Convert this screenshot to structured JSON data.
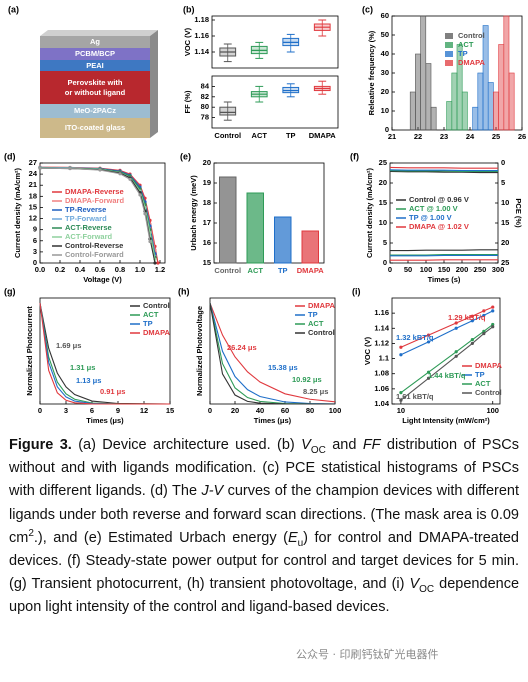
{
  "device_stack": {
    "label": "(a)",
    "layers": [
      "Ag",
      "PCBM/BCP",
      "PEAI",
      [
        "Perovskite with",
        "or without ligand"
      ],
      "MeO-2PACz",
      "ITO-coated glass"
    ]
  },
  "chart_data": [
    {
      "type": "box",
      "label": "(b)",
      "categories": [
        "Control",
        "ACT",
        "TP",
        "DMAPA"
      ],
      "colors": [
        "#555555",
        "#2e9b57",
        "#1f6fc9",
        "#e0393e"
      ],
      "subplots": [
        {
          "ylabel": "VOC (V)",
          "ylim": [
            1.12,
            1.185
          ],
          "yticks": [
            1.14,
            1.16,
            1.18
          ],
          "boxes": [
            {
              "min": 1.128,
              "q1": 1.135,
              "median": 1.14,
              "q3": 1.145,
              "max": 1.15
            },
            {
              "min": 1.132,
              "q1": 1.138,
              "median": 1.142,
              "q3": 1.147,
              "max": 1.152
            },
            {
              "min": 1.14,
              "q1": 1.148,
              "median": 1.152,
              "q3": 1.157,
              "max": 1.162
            },
            {
              "min": 1.16,
              "q1": 1.167,
              "median": 1.171,
              "q3": 1.175,
              "max": 1.18
            }
          ]
        },
        {
          "ylabel": "FF (%)",
          "ylim": [
            76,
            86
          ],
          "yticks": [
            78,
            80,
            82,
            84
          ],
          "boxes": [
            {
              "min": 77.5,
              "q1": 78.5,
              "median": 79,
              "q3": 80,
              "max": 81
            },
            {
              "min": 81,
              "q1": 82,
              "median": 82.5,
              "q3": 83,
              "max": 84
            },
            {
              "min": 82,
              "q1": 82.8,
              "median": 83.2,
              "q3": 83.8,
              "max": 84.5
            },
            {
              "min": 82.5,
              "q1": 83.2,
              "median": 83.6,
              "q3": 84,
              "max": 85
            }
          ]
        }
      ]
    },
    {
      "type": "histogram",
      "label": "(c)",
      "ylabel": "Releative frequency (%)",
      "xlim": [
        21,
        26
      ],
      "xticks": [
        21,
        22,
        23,
        24,
        25,
        26
      ],
      "ylim": [
        0,
        60
      ],
      "yticks": [
        0,
        10,
        20,
        30,
        40,
        50,
        60
      ],
      "series": [
        {
          "name": "Control",
          "color": "#555555",
          "bins": [
            21.7,
            21.9,
            22.1,
            22.3,
            22.5,
            22.7
          ],
          "values": [
            20,
            40,
            60,
            35,
            12
          ]
        },
        {
          "name": "ACT",
          "color": "#2e9b57",
          "bins": [
            23.1,
            23.3,
            23.5,
            23.7,
            23.9
          ],
          "values": [
            15,
            30,
            45,
            20
          ]
        },
        {
          "name": "TP",
          "color": "#1f6fc9",
          "bins": [
            24.1,
            24.3,
            24.5,
            24.7,
            24.9
          ],
          "values": [
            12,
            30,
            55,
            25
          ]
        },
        {
          "name": "DMAPA",
          "color": "#e0393e",
          "bins": [
            24.9,
            25.1,
            25.3,
            25.5,
            25.7
          ],
          "values": [
            20,
            45,
            60,
            30
          ]
        }
      ]
    },
    {
      "type": "line",
      "label": "(d)",
      "markers": true,
      "xlabel": "Voltage (V)",
      "ylabel": "Current density (mA/cm²)",
      "xlim": [
        0,
        1.25
      ],
      "xticks": [
        {
          "value": 0,
          "label": "0.0"
        },
        0.2,
        0.4,
        0.6,
        0.8,
        {
          "value": 1,
          "label": "1.0"
        },
        1.2
      ],
      "ylim": [
        0,
        27
      ],
      "yticks": [
        0,
        3,
        6,
        9,
        12,
        15,
        18,
        21,
        24,
        27
      ],
      "x": [
        0,
        0.3,
        0.6,
        0.8,
        0.9,
        1.0,
        1.05,
        1.1,
        1.15,
        1.18
      ],
      "series": [
        {
          "name": "DMAPA-Reverse",
          "color": "#e0393e",
          "values": [
            25.9,
            25.8,
            25.6,
            25.0,
            24.0,
            21.0,
            17.5,
            11.5,
            4.5,
            0
          ]
        },
        {
          "name": "DMAPA-Forward",
          "color": "#f08080",
          "values": [
            25.9,
            25.8,
            25.5,
            24.7,
            23.5,
            20.2,
            16.5,
            10.5,
            3.5,
            null
          ]
        },
        {
          "name": "TP-Reverse",
          "color": "#1f5fbf",
          "values": [
            25.8,
            25.7,
            25.5,
            24.8,
            23.7,
            20.5,
            16.5,
            10,
            2.5,
            null
          ]
        },
        {
          "name": "TP-Forward",
          "color": "#6fa8dc",
          "values": [
            25.8,
            25.7,
            25.4,
            24.5,
            23.3,
            19.8,
            15.8,
            9.2,
            1.8,
            null
          ]
        },
        {
          "name": "ACT-Reverse",
          "color": "#2e8b57",
          "values": [
            25.7,
            25.6,
            25.4,
            24.6,
            23.5,
            20,
            15.8,
            9,
            1.5,
            null
          ]
        },
        {
          "name": "ACT-Forward",
          "color": "#8fd19e",
          "values": [
            25.7,
            25.6,
            25.3,
            24.4,
            23.1,
            19.4,
            15,
            8.2,
            1,
            null
          ]
        },
        {
          "name": "Control-Reverse",
          "color": "#333333",
          "values": [
            25.6,
            25.5,
            25.2,
            24.3,
            23,
            19,
            14,
            6.5,
            0,
            null
          ]
        },
        {
          "name": "Control-Forward",
          "color": "#999999",
          "values": [
            25.6,
            25.5,
            25.1,
            24.1,
            22.6,
            18.4,
            13.3,
            5.8,
            null,
            null
          ]
        }
      ]
    },
    {
      "type": "bar",
      "label": "(e)",
      "ylabel": "Urbach energy (meV)",
      "categories": [
        "Control",
        "ACT",
        "TP",
        "DMAPA"
      ],
      "values": [
        19.3,
        18.5,
        17.3,
        16.6
      ],
      "colors": [
        "#666666",
        "#2e9b57",
        "#1f6fc9",
        "#e0393e"
      ],
      "ylim": [
        15,
        20
      ],
      "yticks": [
        15,
        16,
        17,
        18,
        19,
        20
      ]
    },
    {
      "type": "line",
      "label": "(f)",
      "xlabel": "Times (s)",
      "ylabel": "Current density (mA/cm²)",
      "y2label": "PCE (%)",
      "xlim": [
        0,
        300
      ],
      "xticks": [
        0,
        50,
        100,
        150,
        200,
        250,
        300
      ],
      "ylim": [
        0,
        25
      ],
      "yticks": [
        0,
        5,
        10,
        15,
        20,
        25
      ],
      "y2lim": [
        25,
        0
      ],
      "y2ticks": [
        0,
        5,
        10,
        15,
        20,
        25
      ],
      "x": [
        0,
        50,
        100,
        150,
        200,
        250,
        300
      ],
      "series": [
        {
          "name": "Control @ 0.96 V",
          "color": "#333333",
          "values": [
            22.9,
            22.8,
            22.8,
            22.7,
            22.7,
            22.6,
            22.6
          ]
        },
        {
          "name": "ACT @ 1.00 V",
          "color": "#2e9b57",
          "values": [
            23.1,
            23.0,
            23.0,
            23.0,
            22.9,
            22.9,
            22.9
          ]
        },
        {
          "name": "TP @ 1.00 V",
          "color": "#1f6fc9",
          "values": [
            23.3,
            23.2,
            23.2,
            23.2,
            23.1,
            23.1,
            23.1
          ]
        },
        {
          "name": "DMAPA @ 1.02 V",
          "color": "#e0393e",
          "values": [
            23.9,
            23.8,
            23.8,
            23.8,
            23.7,
            23.7,
            23.7
          ]
        },
        {
          "axis": "y2",
          "color": "#333333",
          "values": [
            21.9,
            21.9,
            21.8,
            21.8,
            21.8,
            21.7,
            21.7
          ]
        },
        {
          "axis": "y2",
          "color": "#2e9b57",
          "values": [
            23.0,
            23.0,
            23.0,
            22.9,
            22.9,
            22.9,
            22.9
          ]
        },
        {
          "axis": "y2",
          "color": "#1f6fc9",
          "values": [
            23.2,
            23.2,
            23.2,
            23.1,
            23.1,
            23.1,
            23.1
          ]
        },
        {
          "axis": "y2",
          "color": "#e0393e",
          "values": [
            24.3,
            24.3,
            24.3,
            24.2,
            24.2,
            24.2,
            24.2
          ]
        }
      ]
    },
    {
      "type": "line",
      "label": "(g)",
      "xlabel": "Times (μs)",
      "ylabel": "Normalized Photocurrent",
      "xlim": [
        0,
        15
      ],
      "xticks": [
        0,
        3,
        6,
        9,
        12,
        15
      ],
      "ylim": [
        0,
        1.05
      ],
      "x": [
        0,
        1,
        2,
        3,
        4,
        6,
        9,
        15
      ],
      "series": [
        {
          "name": "Control",
          "color": "#333333",
          "values": [
            1,
            0.553,
            0.306,
            0.169,
            0.094,
            0.029,
            0.005,
            0
          ]
        },
        {
          "name": "ACT",
          "color": "#2e9b57",
          "values": [
            1,
            0.466,
            0.217,
            0.101,
            0.047,
            0.01,
            0.001,
            0
          ]
        },
        {
          "name": "TP",
          "color": "#1f6fc9",
          "values": [
            1,
            0.413,
            0.17,
            0.07,
            0.029,
            0.005,
            0,
            0
          ]
        },
        {
          "name": "DMAPA",
          "color": "#e0393e",
          "values": [
            1,
            0.333,
            0.111,
            0.037,
            0.012,
            0.001,
            0,
            0
          ]
        }
      ],
      "annotations": [
        {
          "text": "1.69 μs",
          "color": "#555555"
        },
        {
          "text": "1.31 μs",
          "color": "#2e9b57"
        },
        {
          "text": "1.13 μs",
          "color": "#1f6fc9"
        },
        {
          "text": "0.91 μs",
          "color": "#e0393e"
        }
      ]
    },
    {
      "type": "line",
      "label": "(h)",
      "xlabel": "Times (μs)",
      "ylabel": "Normalized Photovoltage",
      "xlim": [
        0,
        100
      ],
      "xticks": [
        0,
        20,
        40,
        60,
        80,
        100
      ],
      "ylim": [
        0,
        1.05
      ],
      "x": [
        0,
        10,
        20,
        30,
        40,
        60,
        80,
        100
      ],
      "series": [
        {
          "name": "DMAPA",
          "color": "#e0393e",
          "values": [
            1,
            0.683,
            0.467,
            0.319,
            0.218,
            0.101,
            0.047,
            0.022
          ]
        },
        {
          "name": "TP",
          "color": "#1f6fc9",
          "values": [
            1,
            0.522,
            0.272,
            0.142,
            0.074,
            0.02,
            0.005,
            0.001
          ]
        },
        {
          "name": "ACT",
          "color": "#2e9b57",
          "values": [
            1,
            0.4,
            0.16,
            0.064,
            0.026,
            0.004,
            0.001,
            0
          ]
        },
        {
          "name": "Control",
          "color": "#333333",
          "values": [
            1,
            0.298,
            0.089,
            0.026,
            0.008,
            0.001,
            0,
            0
          ]
        }
      ],
      "annotations": [
        {
          "text": "26.24 μs",
          "color": "#e0393e"
        },
        {
          "text": "15.38 μs",
          "color": "#1f6fc9"
        },
        {
          "text": "10.92 μs",
          "color": "#2e9b57"
        },
        {
          "text": "8.25 μs",
          "color": "#555555"
        }
      ]
    },
    {
      "type": "scatter",
      "label": "(i)",
      "markers": true,
      "xlabel": "Light Intensity (mW/cm²)",
      "ylabel": "VOC (V)",
      "xlog": true,
      "xlim": [
        8,
        120
      ],
      "xticks": [
        10,
        100
      ],
      "ylim": [
        1.04,
        1.18
      ],
      "yticks": [
        1.04,
        1.06,
        1.08,
        1.1,
        1.12,
        1.14,
        1.16
      ],
      "x": [
        10,
        20,
        40,
        60,
        80,
        100
      ],
      "series": [
        {
          "name": "DMAPA",
          "color": "#e0393e",
          "values": [
            1.115,
            1.131,
            1.147,
            1.156,
            1.163,
            1.168
          ]
        },
        {
          "name": "TP",
          "color": "#1f6fc9",
          "values": [
            1.105,
            1.122,
            1.14,
            1.15,
            1.157,
            1.163
          ]
        },
        {
          "name": "ACT",
          "color": "#2e9b57",
          "values": [
            1.055,
            1.082,
            1.109,
            1.125,
            1.136,
            1.145
          ]
        },
        {
          "name": "Control",
          "color": "#555555",
          "values": [
            1.045,
            1.074,
            1.103,
            1.12,
            1.133,
            1.142
          ]
        }
      ],
      "annotations": [
        {
          "text": "1.29 kBT/q",
          "color": "#e0393e"
        },
        {
          "text": "1.32 kBT/q",
          "color": "#1f6fc9"
        },
        {
          "text": "1.44 kBT/q",
          "color": "#2e9b57"
        },
        {
          "text": "1.61 kBT/q",
          "color": "#555555"
        }
      ]
    }
  ],
  "caption": [
    "Figure 3.",
    " (a) Device architecture used. (b) ",
    "V",
    "OC",
    " and ",
    "FF",
    " distribution of PSCs without and with ligands modification. (c) PCE statistical histograms of PSCs with different ligands. (d) The ",
    "J-V",
    " curves of the champion devices with different ligands under both reverse and forward scan directions. (The mask area is 0.09 cm",
    "2",
    ".), and (e) Estimated Urbach energy (",
    "E",
    "u",
    ") for control and DMAPA-treated devices. (f) Steady-state power output for control and target devices for 5 min. (g) Transient photocurrent, (h) transient photovoltage, and (i) ",
    "V",
    "OC",
    " dependence upon light intensity of the control and ligand-based devices."
  ],
  "watermark": "公众号 · 印刷钙钛矿光电器件"
}
